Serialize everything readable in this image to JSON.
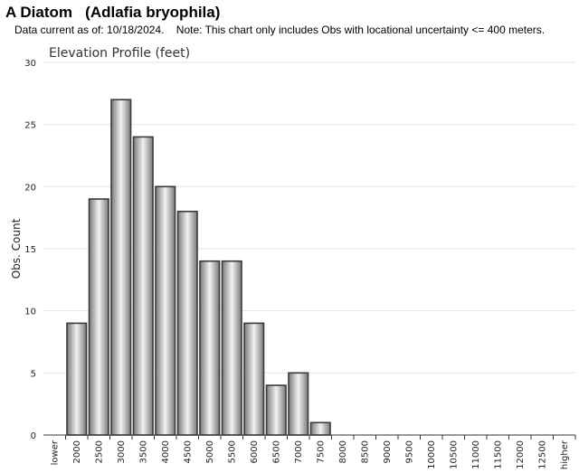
{
  "header": {
    "title": "A Diatom   (Adlafia bryophila)",
    "note": "Data current as of: 10/18/2024.    Note: This chart only includes Obs with locational uncertainty <= 400 meters."
  },
  "chart_data": {
    "type": "bar",
    "title": "Elevation Profile (feet)",
    "xlabel": "",
    "ylabel": "Obs. Count",
    "ylim": [
      0,
      30
    ],
    "yticks": [
      0,
      5,
      10,
      15,
      20,
      25,
      30
    ],
    "grid": true,
    "categories": [
      "lower",
      "2000",
      "2500",
      "3000",
      "3500",
      "4000",
      "4500",
      "5000",
      "5500",
      "6000",
      "6500",
      "7000",
      "7500",
      "8000",
      "8500",
      "9000",
      "9500",
      "10000",
      "10500",
      "11000",
      "11500",
      "12000",
      "12500",
      "higher"
    ],
    "values": [
      0,
      9,
      19,
      27,
      24,
      20,
      18,
      14,
      14,
      9,
      4,
      5,
      1,
      0,
      0,
      0,
      0,
      0,
      0,
      0,
      0,
      0,
      0,
      0
    ],
    "colors": {
      "bar_fill_dark": "#7a7a7a",
      "bar_fill_light": "#f2f2f2",
      "bar_stroke": "#3a3a3a",
      "grid": "#e6e6e6"
    }
  }
}
